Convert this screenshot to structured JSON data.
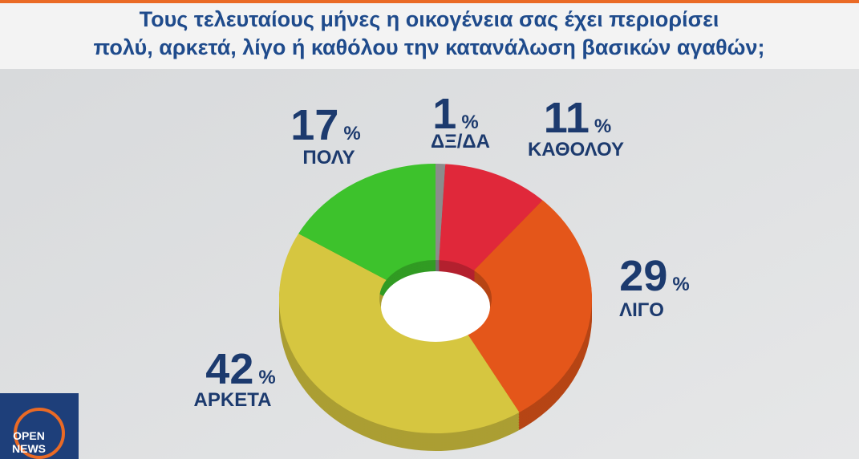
{
  "chart_data": {
    "type": "donut",
    "title": [
      "Τους τελευταίους μήνες η οικογένεια σας έχει περιορίσει",
      "πολύ, αρκετά, λίγο ή καθόλου την κατανάλωση βασικών αγαθών;"
    ],
    "categories": [
      "ΔΞ/ΔΑ",
      "ΚΑΘΟΛΟΥ",
      "ΛΙΓΟ",
      "ΑΡΚΕΤΑ",
      "ΠΟΛΥ"
    ],
    "values": [
      1,
      11,
      29,
      42,
      17
    ],
    "unit": "%",
    "colors": [
      "#8c8c8c",
      "#e0283a",
      "#e4561a",
      "#d6c640",
      "#3dc22c"
    ]
  },
  "logo": {
    "line1": "OPEN",
    "line2": "NEWS"
  }
}
